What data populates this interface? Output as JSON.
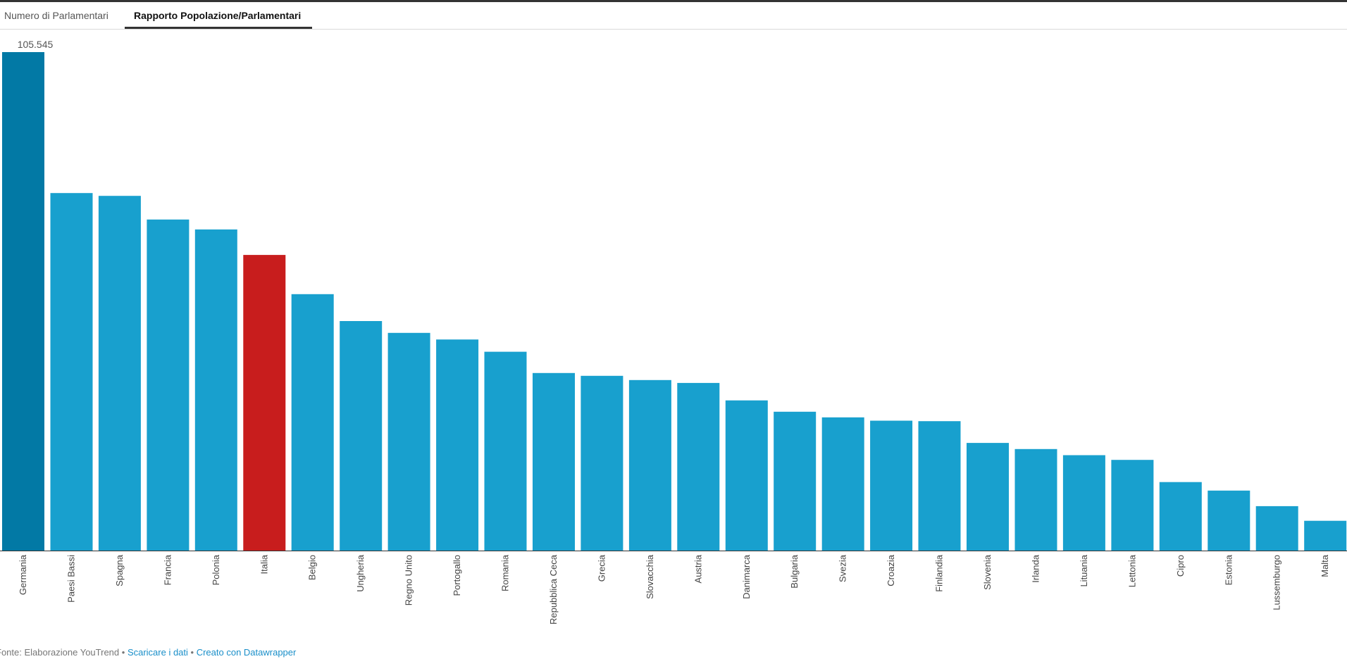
{
  "tabs": [
    {
      "label": "Numero di Parlamentari",
      "active": false
    },
    {
      "label": "Rapporto Popolazione/Parlamentari",
      "active": true
    }
  ],
  "colors": {
    "bar": "#18a0ce",
    "highlight_bar": "#c81d1d",
    "max_bar": "#0279a5",
    "link": "#1a8fc9"
  },
  "footer": {
    "source": "Fonte: Elaborazione YouTrend",
    "separator": " • ",
    "download_label": "Scaricare i dati",
    "created_label": "Creato con Datawrapper"
  },
  "chart_data": {
    "type": "bar",
    "categories": [
      "Germania",
      "Paesi Bassi",
      "Spagna",
      "Francia",
      "Polonia",
      "Italia",
      "Belgio",
      "Ungheria",
      "Regno Unito",
      "Portogallo",
      "Romania",
      "Repubblica Ceca",
      "Grecia",
      "Slovacchia",
      "Austria",
      "Danimarca",
      "Bulgaria",
      "Svezia",
      "Croazia",
      "Finlandia",
      "Slovenia",
      "Irlanda",
      "Lituania",
      "Lettonia",
      "Cipro",
      "Estonia",
      "Lussemburgo",
      "Malta"
    ],
    "values": [
      105545,
      75700,
      75100,
      70100,
      68000,
      62600,
      54300,
      48600,
      46100,
      44700,
      42100,
      37600,
      37000,
      36100,
      35500,
      31800,
      29400,
      28200,
      27500,
      27400,
      22800,
      21500,
      20200,
      19200,
      14500,
      12700,
      9400,
      6300
    ],
    "highlight": "Italia",
    "value_labels": [
      {
        "category": "Germania",
        "text": "105.545"
      }
    ],
    "ylim": [
      0,
      105545
    ],
    "grid": false,
    "legend": "none"
  }
}
